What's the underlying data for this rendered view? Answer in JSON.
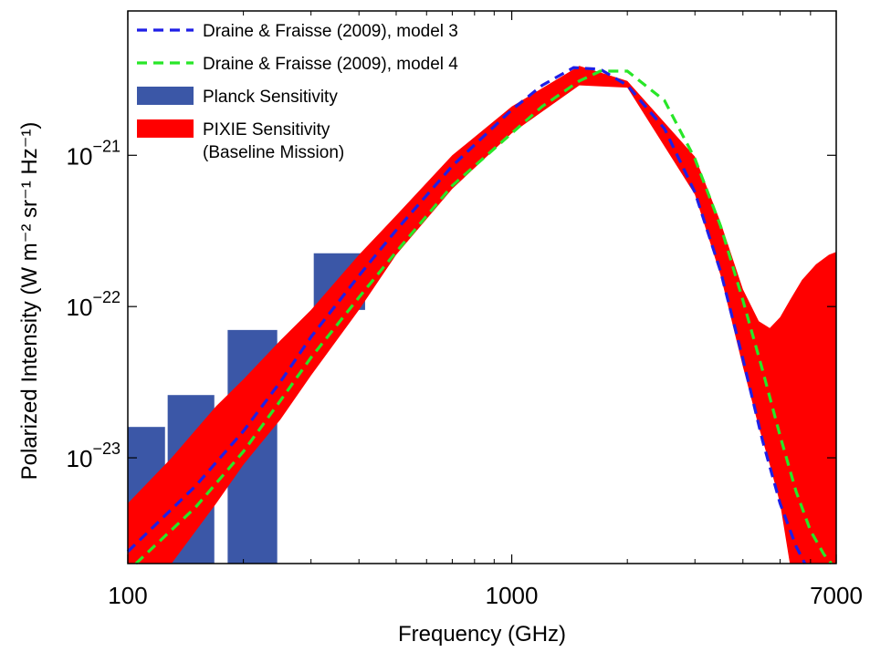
{
  "chart_data": {
    "type": "area",
    "title": "",
    "xlabel": "Frequency (GHz)",
    "ylabel": "Polarized Intensity (W m⁻² sr⁻¹ Hz⁻¹)",
    "x_scale": "log",
    "y_scale": "log",
    "xlim": [
      100,
      7000
    ],
    "ylim": [
      2e-24,
      9e-21
    ],
    "grid": false,
    "legend_position": "top-left",
    "x_ticks": [
      {
        "value": 100,
        "label": "100"
      },
      {
        "value": 1000,
        "label": "1000"
      },
      {
        "value": 7000,
        "label": "7000"
      }
    ],
    "y_ticks": [
      {
        "value": 1e-23,
        "base": "10",
        "exponent": "−23"
      },
      {
        "value": 1e-22,
        "base": "10",
        "exponent": "−22"
      },
      {
        "value": 1e-21,
        "base": "10",
        "exponent": "−21"
      }
    ],
    "colors": {
      "model3": "#1f1fe6",
      "model4": "#28e628",
      "planck": "#3b57a7",
      "pixie": "#ff0000"
    },
    "series": [
      {
        "name": "Draine & Fraisse (2009), model 3",
        "style": "dashed",
        "color_key": "model3",
        "x": [
          100,
          150,
          200,
          250,
          300,
          400,
          500,
          700,
          1000,
          1200,
          1450,
          1700,
          2000,
          2500,
          3000,
          3500,
          4000,
          4500,
          5000,
          5500,
          5800
        ],
        "y": [
          2.4e-24,
          6.5e-24,
          1.5e-23,
          3.2e-23,
          6.3e-23,
          1.6e-22,
          3.2e-22,
          8.5e-22,
          2e-21,
          2.9e-21,
          3.8e-21,
          3.7e-21,
          2.9e-21,
          1.5e-21,
          5.7e-22,
          1.7e-22,
          4.5e-23,
          1.3e-23,
          5e-24,
          2.6e-24,
          2e-24
        ]
      },
      {
        "name": "Draine & Fraisse (2009), model 4",
        "style": "dashed",
        "color_key": "model4",
        "x": [
          105,
          150,
          200,
          250,
          300,
          400,
          500,
          700,
          1000,
          1200,
          1500,
          1700,
          2000,
          2500,
          3000,
          3500,
          4000,
          4500,
          5000,
          5500,
          6000,
          6500,
          6800
        ],
        "y": [
          2e-24,
          4.7e-24,
          1.1e-23,
          2.4e-23,
          4.6e-23,
          1.15e-22,
          2.3e-22,
          6.3e-22,
          1.4e-21,
          2.1e-21,
          3.1e-21,
          3.6e-21,
          3.6e-21,
          2.3e-21,
          9.5e-22,
          3.4e-22,
          1.1e-22,
          3.8e-23,
          1.4e-23,
          6e-24,
          3.3e-24,
          2.3e-24,
          2e-24
        ]
      },
      {
        "name": "Planck Sensitivity",
        "type": "bar",
        "color_key": "planck",
        "bands": [
          {
            "x_min": 100,
            "x_max": 125,
            "y": 1.6e-23
          },
          {
            "x_min": 127,
            "x_max": 168,
            "y": 2.6e-23
          },
          {
            "x_min": 182,
            "x_max": 245,
            "y": 7e-23
          },
          {
            "x_min": 305,
            "x_max": 415,
            "y_min": 9.5e-23,
            "y_max": 2.25e-22
          }
        ]
      },
      {
        "name": "PIXIE Sensitivity",
        "name_line2": "(Baseline Mission)",
        "type": "area",
        "color_key": "pixie",
        "bands": [
          {
            "x": [
              100,
              130,
              170,
              200,
              250,
              300,
              400,
              500,
              700,
              1000,
              1500,
              2000,
              3000,
              3500,
              4000,
              4400,
              4700,
              5000,
              5300,
              5700,
              6200,
              6700,
              7000
            ],
            "y_upper": [
              5e-24,
              1e-23,
              2.2e-23,
              3.3e-23,
              6e-23,
              9.5e-23,
              2.2e-22,
              4e-22,
              1e-21,
              2.1e-21,
              3.9e-21,
              3.1e-21,
              9.8e-22,
              3.6e-22,
              1.3e-22,
              8e-23,
              7.2e-23,
              8.5e-23,
              1.1e-22,
              1.5e-22,
              1.9e-22,
              2.2e-22,
              2.3e-22
            ],
            "y_lower": [
              2e-24,
              2e-24,
              5e-24,
              9e-24,
              1.8e-23,
              3.5e-23,
              9.5e-23,
              2.2e-22,
              6e-22,
              1.4e-21,
              2.9e-21,
              2.8e-21,
              5.5e-22,
              1.6e-22,
              4e-23,
              1.6e-23,
              9e-24,
              5e-24,
              2e-24,
              2e-24,
              2e-24,
              2e-24,
              2e-24
            ]
          }
        ]
      }
    ],
    "legend": [
      {
        "label": "Draine & Fraisse (2009), model 3",
        "kind": "dash",
        "color_key": "model3"
      },
      {
        "label": "Draine & Fraisse (2009), model 4",
        "kind": "dash",
        "color_key": "model4"
      },
      {
        "label": "Planck Sensitivity",
        "kind": "patch",
        "color_key": "planck"
      },
      {
        "label": "PIXIE Sensitivity",
        "label2": "(Baseline Mission)",
        "kind": "patch",
        "color_key": "pixie"
      }
    ]
  }
}
